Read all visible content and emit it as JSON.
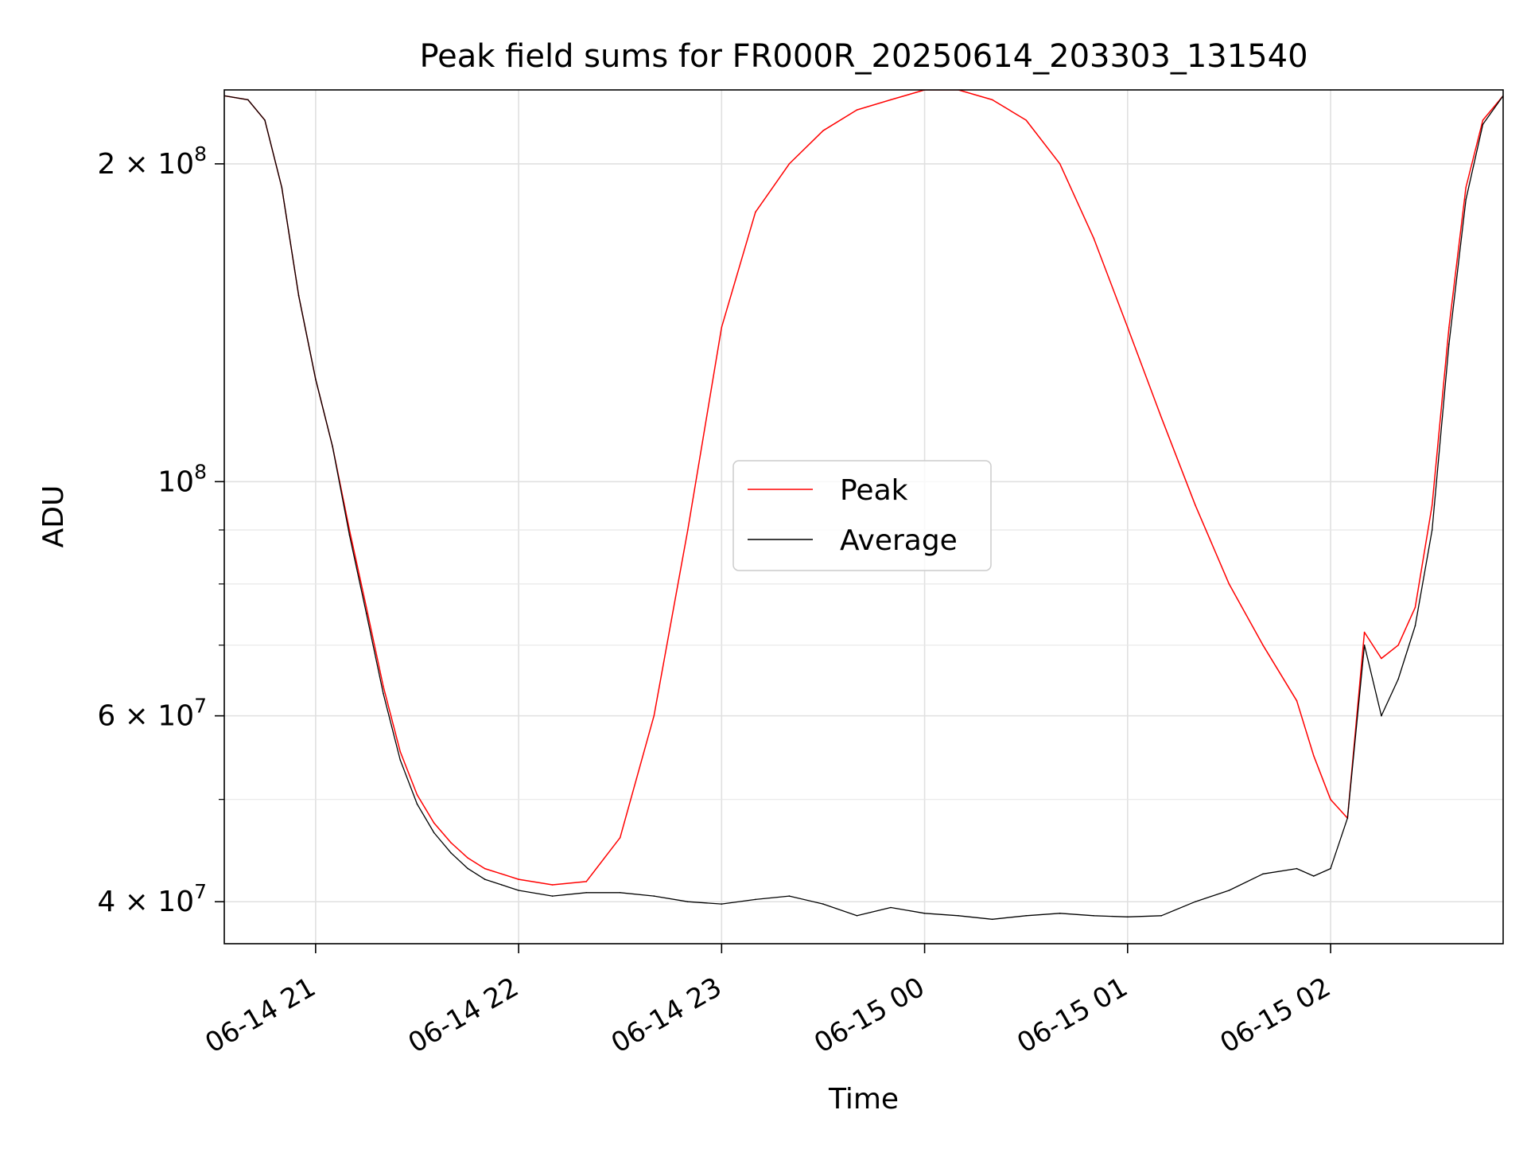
{
  "chart_data": {
    "type": "line",
    "title": "Peak field sums for FR000R_20250614_203303_131540",
    "xlabel": "Time",
    "ylabel": "ADU",
    "y_scale": "log",
    "ylim": [
      36500000,
      235000000
    ],
    "xlim": [
      "2025-06-14 20:33",
      "2025-06-15 02:51"
    ],
    "grid": true,
    "legend_position": "center",
    "colors": {
      "Peak": "#ff0000",
      "Average": "#000000"
    },
    "x_ticks": [
      {
        "value": "2025-06-14 21:00",
        "label": "06-14 21"
      },
      {
        "value": "2025-06-14 22:00",
        "label": "06-14 22"
      },
      {
        "value": "2025-06-14 23:00",
        "label": "06-14 23"
      },
      {
        "value": "2025-06-15 00:00",
        "label": "06-15 00"
      },
      {
        "value": "2025-06-15 01:00",
        "label": "06-15 01"
      },
      {
        "value": "2025-06-15 02:00",
        "label": "06-15 02"
      }
    ],
    "y_ticks": [
      {
        "value": 40000000,
        "base": "4 × 10",
        "exp": "7"
      },
      {
        "value": 60000000,
        "base": "6 × 10",
        "exp": "7"
      },
      {
        "value": 100000000,
        "base": "10",
        "exp": "8"
      },
      {
        "value": 200000000,
        "base": "2 × 10",
        "exp": "8"
      }
    ],
    "y_minor_ticks": [
      50000000,
      70000000,
      80000000,
      90000000
    ],
    "series": [
      {
        "name": "Peak",
        "x": [
          "2025-06-14 20:33",
          "2025-06-14 20:40",
          "2025-06-14 20:45",
          "2025-06-14 20:50",
          "2025-06-14 20:55",
          "2025-06-14 21:00",
          "2025-06-14 21:05",
          "2025-06-14 21:10",
          "2025-06-14 21:15",
          "2025-06-14 21:20",
          "2025-06-14 21:25",
          "2025-06-14 21:30",
          "2025-06-14 21:35",
          "2025-06-14 21:40",
          "2025-06-14 21:45",
          "2025-06-14 21:50",
          "2025-06-14 21:55",
          "2025-06-14 22:00",
          "2025-06-14 22:10",
          "2025-06-14 22:20",
          "2025-06-14 22:30",
          "2025-06-14 22:40",
          "2025-06-14 22:50",
          "2025-06-14 23:00",
          "2025-06-14 23:10",
          "2025-06-14 23:20",
          "2025-06-14 23:30",
          "2025-06-14 23:40",
          "2025-06-14 23:50",
          "2025-06-15 00:00",
          "2025-06-15 00:10",
          "2025-06-15 00:20",
          "2025-06-15 00:30",
          "2025-06-15 00:40",
          "2025-06-15 00:50",
          "2025-06-15 01:00",
          "2025-06-15 01:10",
          "2025-06-15 01:20",
          "2025-06-15 01:30",
          "2025-06-15 01:40",
          "2025-06-15 01:50",
          "2025-06-15 01:55",
          "2025-06-15 02:00",
          "2025-06-15 02:05",
          "2025-06-15 02:10",
          "2025-06-15 02:15",
          "2025-06-15 02:20",
          "2025-06-15 02:25",
          "2025-06-15 02:30",
          "2025-06-15 02:35",
          "2025-06-15 02:40",
          "2025-06-15 02:45",
          "2025-06-15 02:51"
        ],
        "values": [
          232000000,
          230000000,
          220000000,
          190000000,
          150000000,
          125000000,
          108000000,
          90000000,
          76000000,
          64000000,
          55500000,
          50500000,
          47500000,
          45500000,
          44000000,
          43000000,
          42500000,
          42000000,
          41500000,
          41800000,
          46000000,
          60000000,
          90000000,
          140000000,
          180000000,
          200000000,
          215000000,
          225000000,
          230000000,
          235000000,
          235000000,
          230000000,
          220000000,
          200000000,
          170000000,
          140000000,
          115000000,
          95000000,
          80000000,
          70000000,
          62000000,
          55000000,
          50000000,
          48000000,
          72000000,
          68000000,
          70000000,
          76000000,
          95000000,
          140000000,
          190000000,
          220000000,
          232000000
        ]
      },
      {
        "name": "Average",
        "x": [
          "2025-06-14 20:33",
          "2025-06-14 20:40",
          "2025-06-14 20:45",
          "2025-06-14 20:50",
          "2025-06-14 20:55",
          "2025-06-14 21:00",
          "2025-06-14 21:05",
          "2025-06-14 21:10",
          "2025-06-14 21:15",
          "2025-06-14 21:20",
          "2025-06-14 21:25",
          "2025-06-14 21:30",
          "2025-06-14 21:35",
          "2025-06-14 21:40",
          "2025-06-14 21:45",
          "2025-06-14 21:50",
          "2025-06-14 21:55",
          "2025-06-14 22:00",
          "2025-06-14 22:10",
          "2025-06-14 22:20",
          "2025-06-14 22:30",
          "2025-06-14 22:40",
          "2025-06-14 22:50",
          "2025-06-14 23:00",
          "2025-06-14 23:10",
          "2025-06-14 23:20",
          "2025-06-14 23:30",
          "2025-06-14 23:40",
          "2025-06-14 23:50",
          "2025-06-15 00:00",
          "2025-06-15 00:10",
          "2025-06-15 00:20",
          "2025-06-15 00:30",
          "2025-06-15 00:40",
          "2025-06-15 00:50",
          "2025-06-15 01:00",
          "2025-06-15 01:10",
          "2025-06-15 01:20",
          "2025-06-15 01:30",
          "2025-06-15 01:40",
          "2025-06-15 01:50",
          "2025-06-15 01:55",
          "2025-06-15 02:00",
          "2025-06-15 02:05",
          "2025-06-15 02:10",
          "2025-06-15 02:15",
          "2025-06-15 02:20",
          "2025-06-15 02:25",
          "2025-06-15 02:30",
          "2025-06-15 02:35",
          "2025-06-15 02:40",
          "2025-06-15 02:45",
          "2025-06-15 02:51"
        ],
        "values": [
          232000000,
          230000000,
          220000000,
          190000000,
          150000000,
          125000000,
          108000000,
          89000000,
          75000000,
          63000000,
          54500000,
          49500000,
          46500000,
          44500000,
          43000000,
          42000000,
          41500000,
          41000000,
          40500000,
          40800000,
          40800000,
          40500000,
          40000000,
          39800000,
          40200000,
          40500000,
          39800000,
          38800000,
          39500000,
          39000000,
          38800000,
          38500000,
          38800000,
          39000000,
          38800000,
          38700000,
          38800000,
          40000000,
          41000000,
          42500000,
          43000000,
          42300000,
          43000000,
          48000000,
          70000000,
          60000000,
          65000000,
          73000000,
          90000000,
          135000000,
          185000000,
          218000000,
          232000000
        ]
      }
    ]
  }
}
